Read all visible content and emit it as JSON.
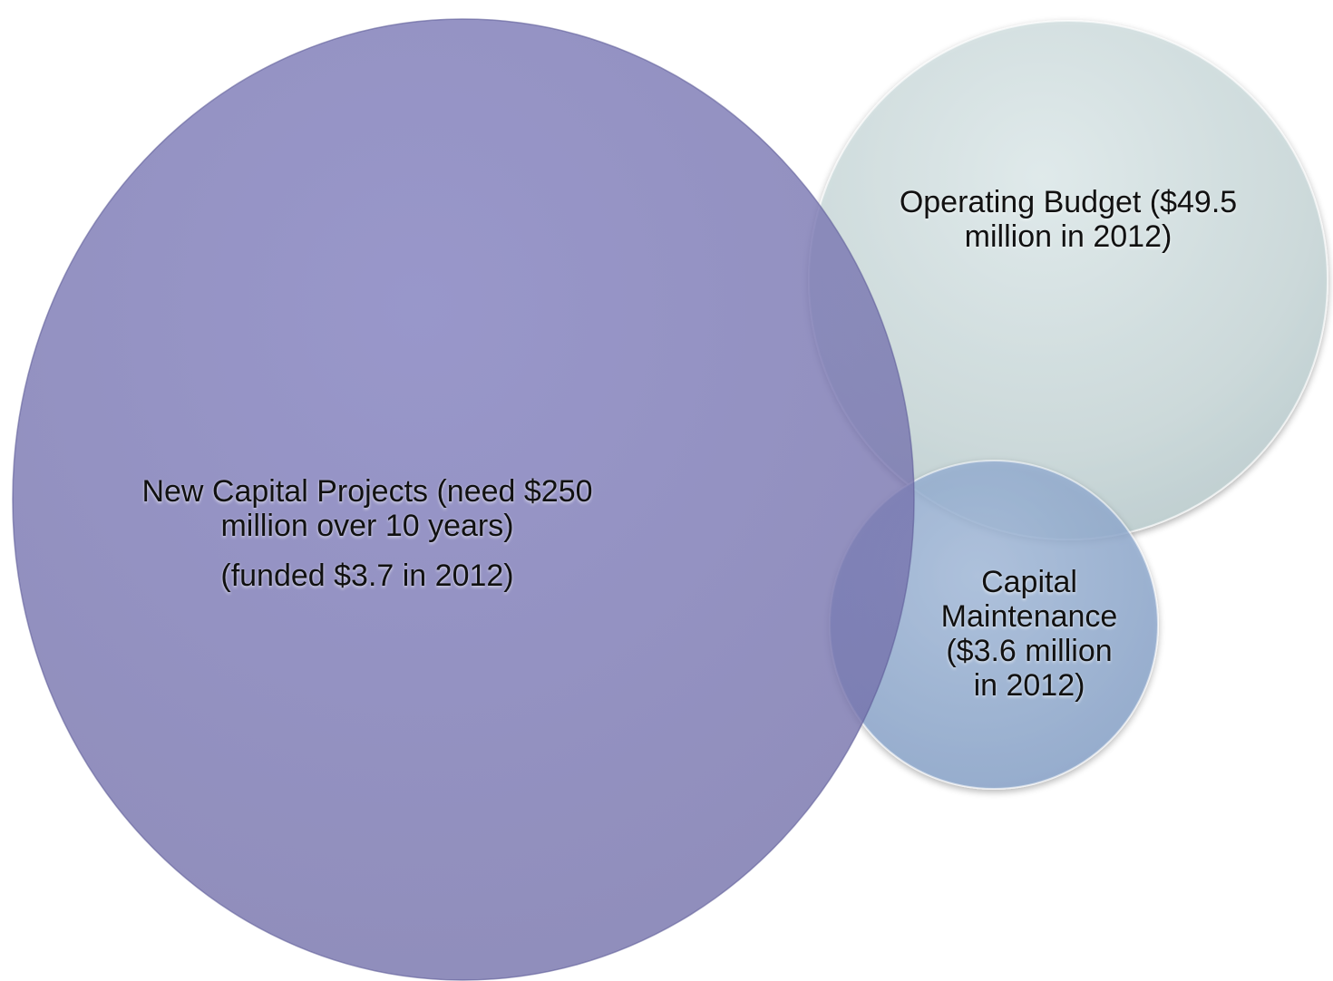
{
  "diagram": {
    "type": "overlapping-bubbles",
    "bubbles": [
      {
        "id": "new-capital-projects",
        "lines": [
          "New Capital Projects (need $250",
          "million over 10 years)"
        ],
        "subline": "(funded $3.7 in 2012)",
        "color": "#7a78b6"
      },
      {
        "id": "operating-budget",
        "lines": [
          "Operating Budget ($49.5",
          "million in 2012)"
        ],
        "color": "#cfdcdd"
      },
      {
        "id": "capital-maintenance",
        "lines": [
          "Capital",
          "Maintenance",
          "($3.6 million",
          "in 2012)"
        ],
        "color": "#92abcf"
      }
    ]
  }
}
